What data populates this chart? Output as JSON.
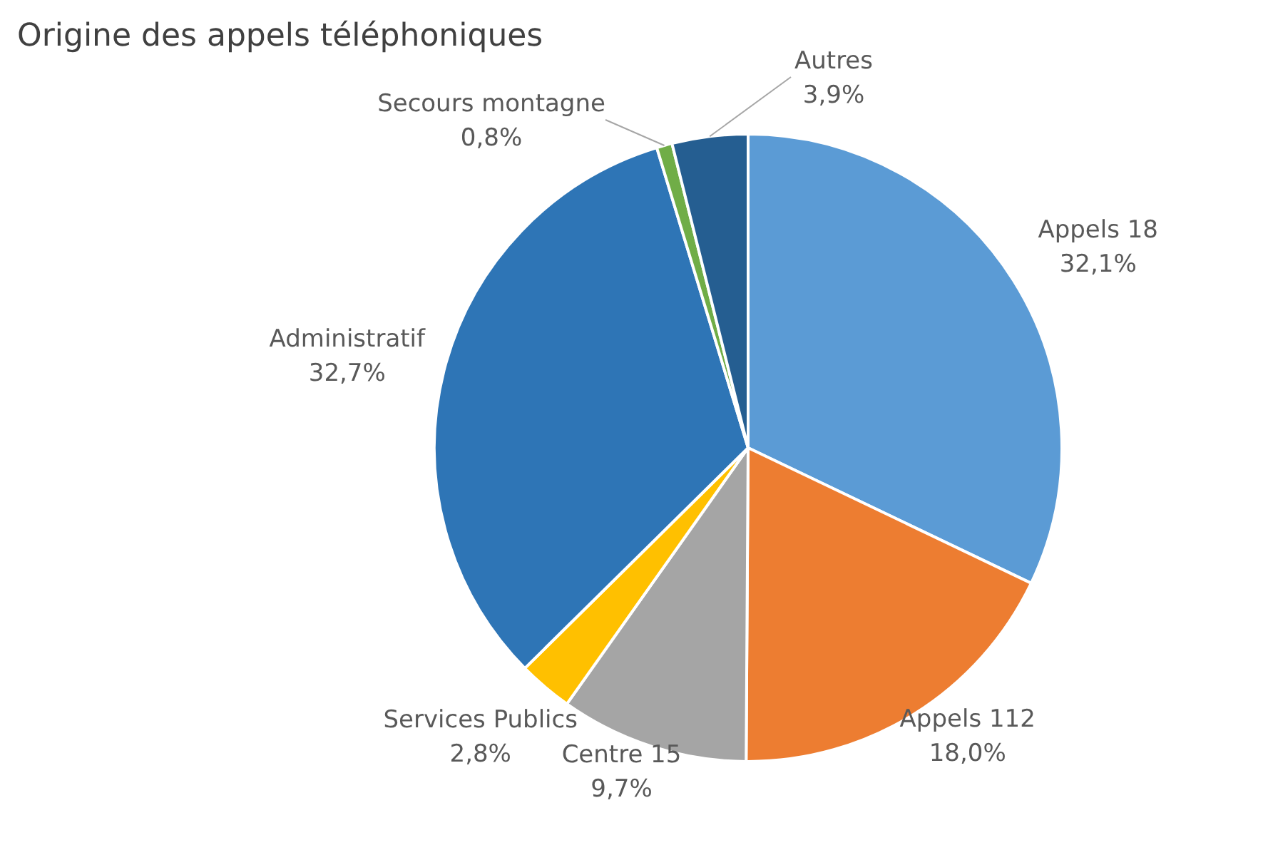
{
  "chart_data": {
    "type": "pie",
    "title": "Origine des appels téléphoniques",
    "categories": [
      "Appels 18",
      "Appels 112",
      "Centre 15",
      "Services Publics",
      "Administratif",
      "Secours montagne",
      "Autres"
    ],
    "values": [
      32.1,
      18.0,
      9.7,
      2.8,
      32.7,
      0.8,
      3.9
    ],
    "value_labels": [
      "32,1%",
      "18,0%",
      "9,7%",
      "2,8%",
      "32,7%",
      "0,8%",
      "3,9%"
    ],
    "colors": [
      "#5b9bd5",
      "#ed7d31",
      "#a5a5a5",
      "#ffc000",
      "#2e75b6",
      "#70ad47",
      "#255e91"
    ],
    "legend": false
  }
}
